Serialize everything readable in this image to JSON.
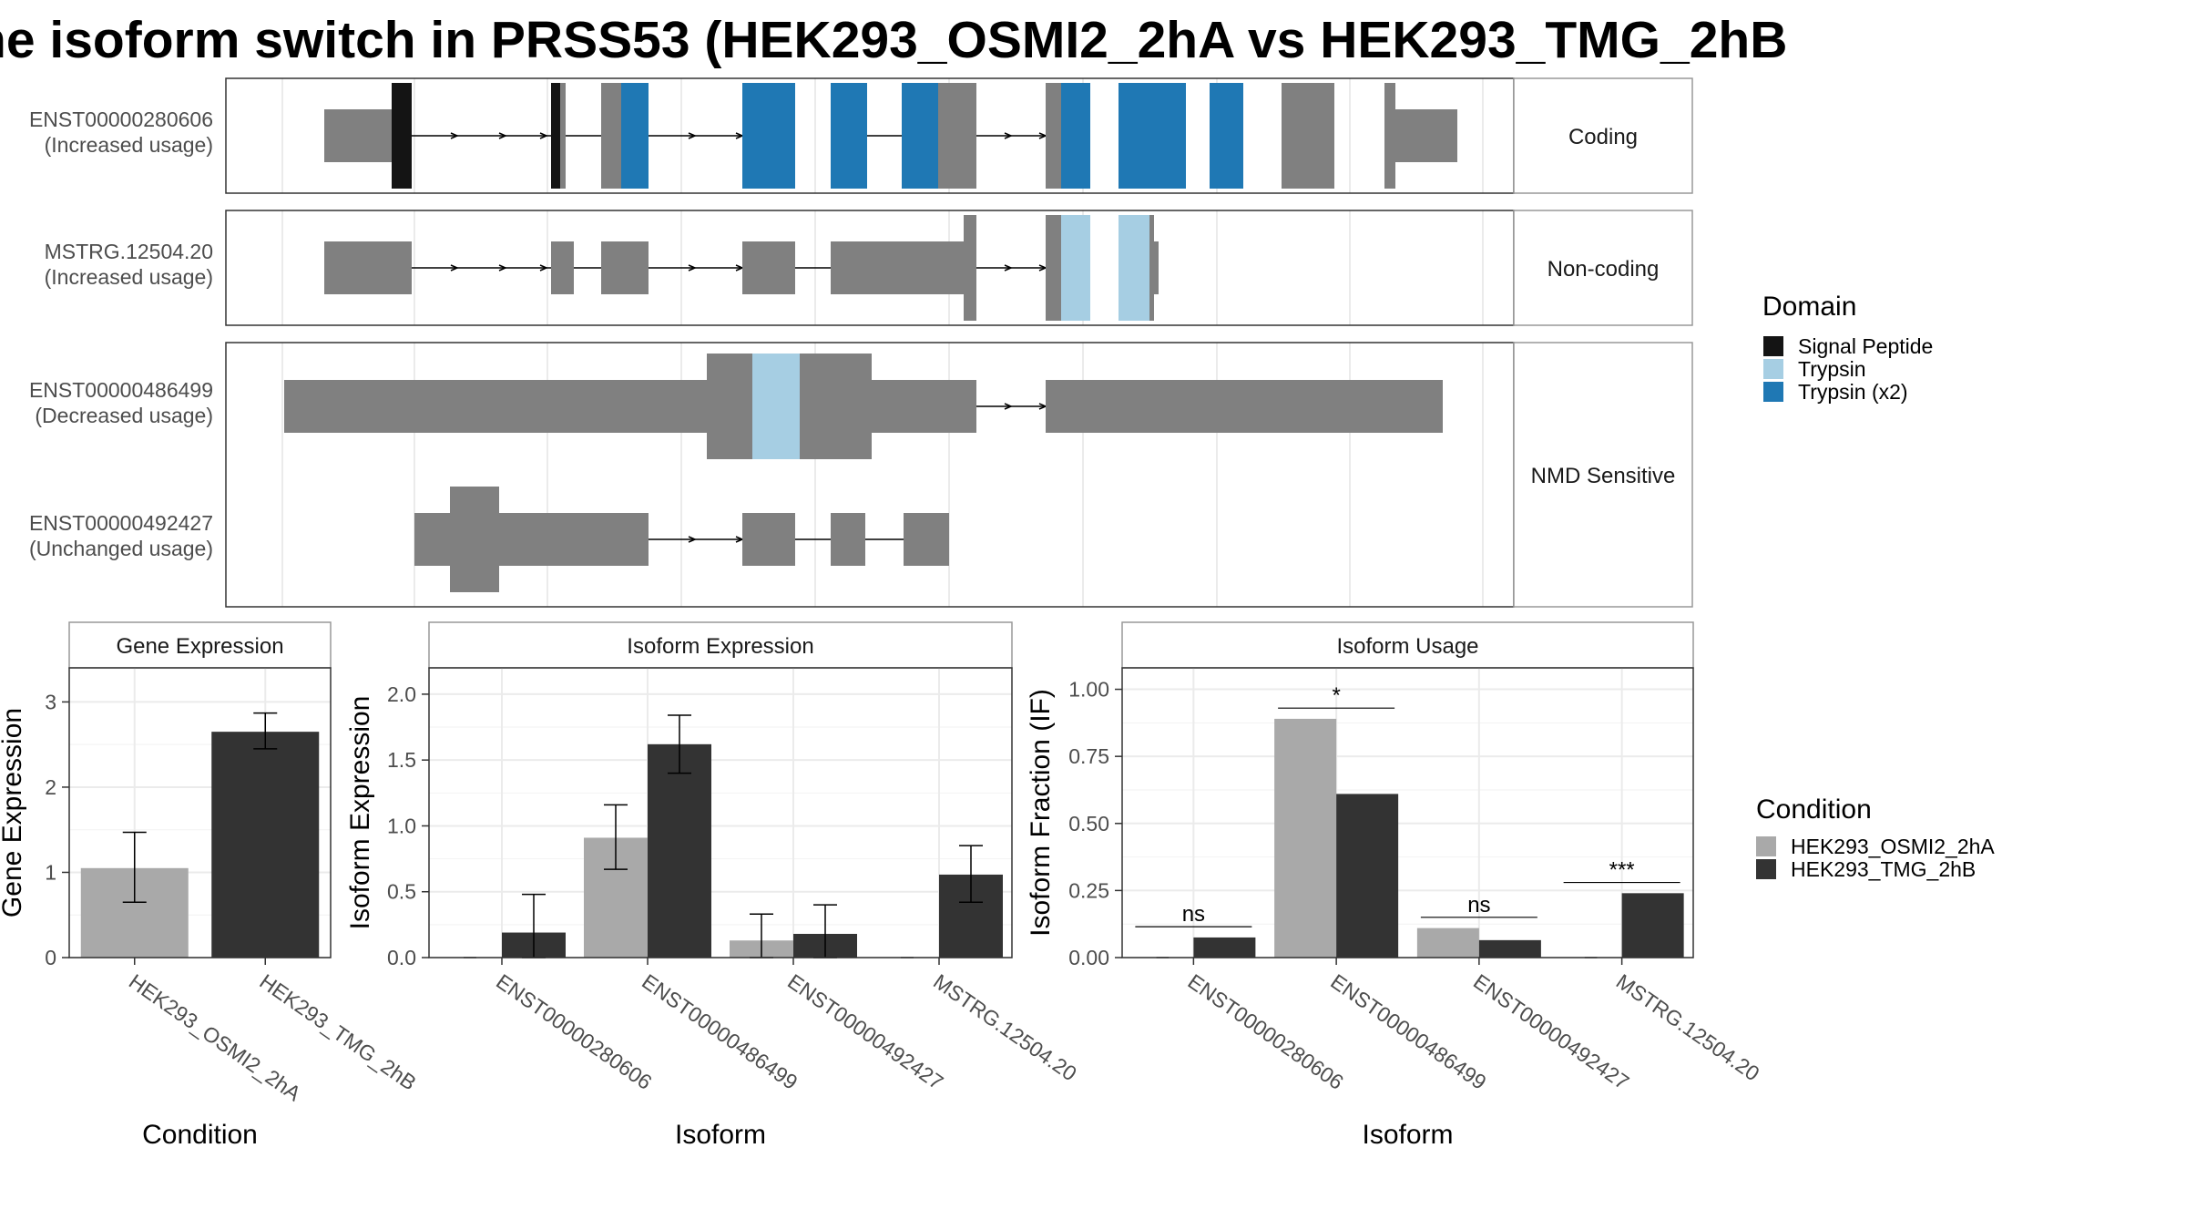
{
  "title": "ne isoform switch in PRSS53 (HEK293_OSMI2_2hA vs HEK293_TMG_2hB",
  "colors": {
    "exon": "#808080",
    "signal_peptide": "#141414",
    "trypsin": "#a6cee3",
    "trypsin_x2": "#1f78b4",
    "cond_a": "#a9a9a9",
    "cond_b": "#333333"
  },
  "structure": {
    "panels": [
      {
        "label": "Coding",
        "transcripts": [
          {
            "id": "ENST00000280606",
            "usage": "(Increased usage)"
          }
        ]
      },
      {
        "label": "Non-coding",
        "transcripts": [
          {
            "id": "MSTRG.12504.20",
            "usage": "(Increased usage)"
          }
        ]
      },
      {
        "label": "NMD Sensitive",
        "transcripts": [
          {
            "id": "ENST00000486499",
            "usage": "(Decreased usage)"
          },
          {
            "id": "ENST00000492427",
            "usage": "(Unchanged usage)"
          }
        ]
      }
    ]
  },
  "domain_legend": {
    "title": "Domain",
    "items": [
      {
        "label": "Signal Peptide",
        "color": "#141414"
      },
      {
        "label": "Trypsin",
        "color": "#a6cee3"
      },
      {
        "label": "Trypsin (x2)",
        "color": "#1f78b4"
      }
    ]
  },
  "condition_legend": {
    "title": "Condition",
    "items": [
      {
        "label": "HEK293_OSMI2_2hA",
        "color": "#a9a9a9"
      },
      {
        "label": "HEK293_TMG_2hB",
        "color": "#333333"
      }
    ]
  },
  "chart_data": [
    {
      "type": "bar",
      "title": "Gene Expression",
      "xlabel": "Condition",
      "ylabel": "Gene Expression",
      "ylim": [
        0,
        3.4
      ],
      "yticks": [
        "0",
        "1",
        "2",
        "3"
      ],
      "categories": [
        "HEK293_OSMI2_2hA",
        "HEK293_TMG_2hB"
      ],
      "values": [
        1.05,
        2.65
      ],
      "errors": [
        [
          0.65,
          1.47
        ],
        [
          2.45,
          2.87
        ]
      ]
    },
    {
      "type": "bar",
      "title": "Isoform Expression",
      "xlabel": "Isoform",
      "ylabel": "Isoform Expression",
      "ylim": [
        0,
        2.2
      ],
      "yticks": [
        "0.0",
        "0.5",
        "1.0",
        "1.5",
        "2.0"
      ],
      "categories": [
        "ENST00000280606",
        "ENST00000486499",
        "ENST00000492427",
        "MSTRG.12504.20"
      ],
      "series": [
        {
          "name": "HEK293_OSMI2_2hA",
          "values": [
            0.0,
            0.91,
            0.13,
            0.0
          ],
          "errors": [
            null,
            [
              0.67,
              1.16
            ],
            [
              0.0,
              0.33
            ],
            null
          ]
        },
        {
          "name": "HEK293_TMG_2hB",
          "values": [
            0.19,
            1.62,
            0.18,
            0.63
          ],
          "errors": [
            [
              0.0,
              0.48
            ],
            [
              1.4,
              1.84
            ],
            [
              0.0,
              0.4
            ],
            [
              0.42,
              0.85
            ]
          ]
        }
      ]
    },
    {
      "type": "bar",
      "title": "Isoform Usage",
      "xlabel": "Isoform",
      "ylabel": "Isoform Fraction (IF)",
      "ylim": [
        0,
        1.08
      ],
      "yticks": [
        "0.00",
        "0.25",
        "0.50",
        "0.75",
        "1.00"
      ],
      "categories": [
        "ENST00000280606",
        "ENST00000486499",
        "ENST00000492427",
        "MSTRG.12504.20"
      ],
      "series": [
        {
          "name": "HEK293_OSMI2_2hA",
          "values": [
            0.0,
            0.89,
            0.11,
            0.0
          ]
        },
        {
          "name": "HEK293_TMG_2hB",
          "values": [
            0.075,
            0.61,
            0.065,
            0.24
          ]
        }
      ],
      "significance": [
        "ns",
        "*",
        "ns",
        "***"
      ]
    }
  ]
}
